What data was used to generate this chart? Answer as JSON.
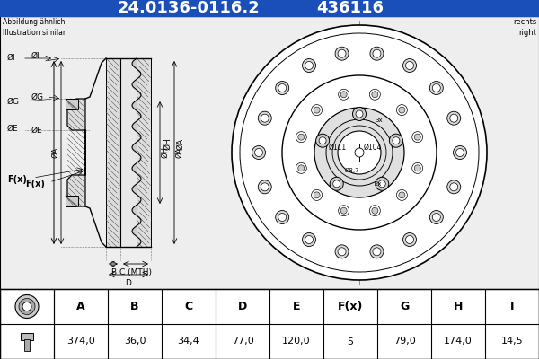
{
  "title_part_number": "24.0136-0116.2",
  "title_ref_number": "436116",
  "title_bg_color": "#1a4fba",
  "title_text_color": "#FFFFFF",
  "subtitle_left": "Abbildung ähnlich\nIllustration similar",
  "subtitle_right": "rechts\nright",
  "table_headers": [
    "A",
    "B",
    "C",
    "D",
    "E",
    "F(x)",
    "G",
    "H",
    "I"
  ],
  "table_values": [
    "374,0",
    "36,0",
    "34,4",
    "77,0",
    "120,0",
    "5",
    "79,0",
    "174,0",
    "14,5"
  ],
  "bg_color": "#FFFFFF",
  "diagram_line_color": "#000000",
  "diagram_bg_color": "#f0f0f0",
  "hatch_color": "#555555"
}
